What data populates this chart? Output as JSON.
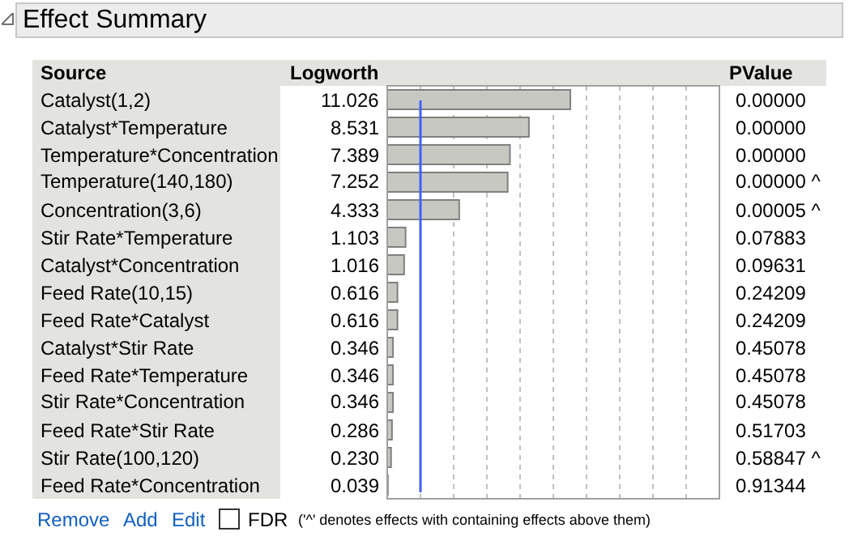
{
  "chart_data": {
    "type": "bar",
    "orientation": "horizontal",
    "title": "Effect Summary",
    "ylabel": "Source",
    "xlabel": "Logworth",
    "categories": [
      "Catalyst(1,2)",
      "Catalyst*Temperature",
      "Temperature*Concentration",
      "Temperature(140,180)",
      "Concentration(3,6)",
      "Stir Rate*Temperature",
      "Catalyst*Concentration",
      "Feed Rate(10,15)",
      "Feed Rate*Catalyst",
      "Catalyst*Stir Rate",
      "Feed Rate*Temperature",
      "Stir Rate*Concentration",
      "Feed Rate*Stir Rate",
      "Stir Rate(100,120)",
      "Feed Rate*Concentration"
    ],
    "values": [
      11.026,
      8.531,
      7.389,
      7.252,
      4.333,
      1.103,
      1.016,
      0.616,
      0.616,
      0.346,
      0.346,
      0.346,
      0.286,
      0.23,
      0.039
    ],
    "color": "#c8c8c2",
    "value_labels": [
      "11.026",
      "8.531",
      "7.389",
      "7.252",
      "4.333",
      "1.103",
      "1.016",
      "0.616",
      "0.616",
      "0.346",
      "0.346",
      "0.346",
      "0.286",
      "0.230",
      "0.039"
    ],
    "xlim": [
      0,
      20
    ],
    "xticks": [
      {
        "value": 2,
        "label": null
      },
      {
        "value": 4,
        "label": null
      },
      {
        "value": 6,
        "label": null
      },
      {
        "value": 8,
        "label": null
      },
      {
        "value": 10,
        "label": null
      },
      {
        "value": 12,
        "label": null
      },
      {
        "value": 14,
        "label": null
      },
      {
        "value": 16,
        "label": null
      },
      {
        "value": 18,
        "label": null
      }
    ],
    "grid": "x",
    "tick_labels": "y",
    "legend": false,
    "ref_lines": [
      {
        "axis": "x",
        "value": 2,
        "color": "#4060ff"
      }
    ],
    "annotations": [
      "PValue",
      "0.00000",
      "0.00000",
      "0.00000",
      "0.00000 ^",
      "0.00005 ^",
      "0.07883",
      "0.09631",
      "0.24209",
      "0.24209",
      "0.45078",
      "0.45078",
      "0.45078",
      "0.51703",
      "0.58847 ^",
      "0.91344",
      "Remove",
      "Add",
      "Edit",
      "FDR",
      "('^' denotes effects with containing effects above them)"
    ]
  }
}
